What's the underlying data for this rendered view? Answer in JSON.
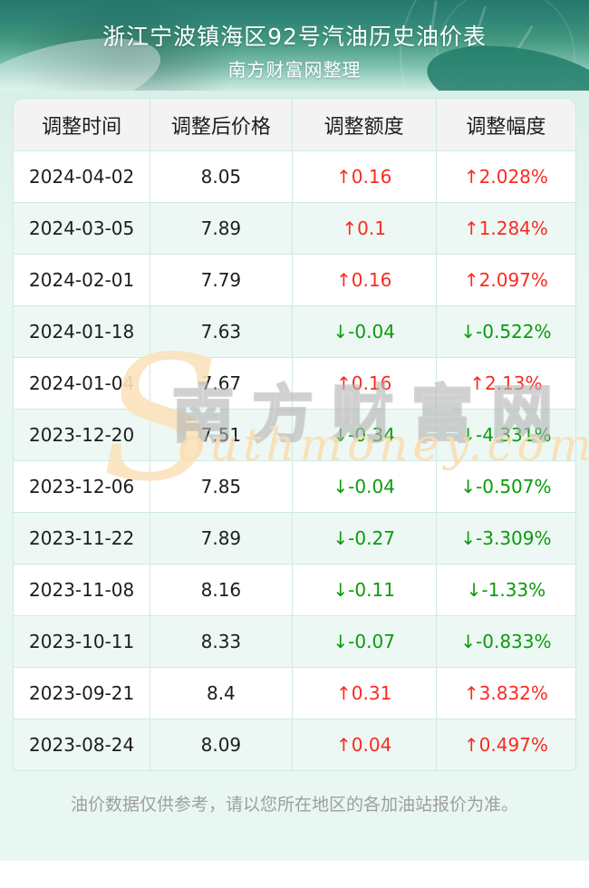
{
  "header": {
    "title": "浙江宁波镇海区92号汽油历史油价表",
    "subtitle": "南方财富网整理"
  },
  "chart_data": {
    "type": "table",
    "title": "浙江宁波镇海区92号汽油历史油价表",
    "subtitle": "南方财富网整理",
    "columns": [
      "调整时间",
      "调整后价格",
      "调整额度",
      "调整幅度"
    ],
    "rows": [
      [
        "2024-04-02",
        "8.05",
        "↑0.16",
        "↑2.028%"
      ],
      [
        "2024-03-05",
        "7.89",
        "↑0.1",
        "↑1.284%"
      ],
      [
        "2024-02-01",
        "7.79",
        "↑0.16",
        "↑2.097%"
      ],
      [
        "2024-01-18",
        "7.63",
        "↓-0.04",
        "↓-0.522%"
      ],
      [
        "2024-01-04",
        "7.67",
        "↑0.16",
        "↑2.13%"
      ],
      [
        "2023-12-20",
        "7.51",
        "↓-0.34",
        "↓-4.331%"
      ],
      [
        "2023-12-06",
        "7.85",
        "↓-0.04",
        "↓-0.507%"
      ],
      [
        "2023-11-22",
        "7.89",
        "↓-0.27",
        "↓-3.309%"
      ],
      [
        "2023-11-08",
        "8.16",
        "↓-0.11",
        "↓-1.33%"
      ],
      [
        "2023-10-11",
        "8.33",
        "↓-0.07",
        "↓-0.833%"
      ],
      [
        "2023-09-21",
        "8.4",
        "↑0.31",
        "↑3.832%"
      ],
      [
        "2023-08-24",
        "8.09",
        "↑0.04",
        "↑0.497%"
      ]
    ],
    "note": "油价数据仅供参考，请以您所在地区的各加油站报价为准。"
  },
  "watermark": {
    "swash": "S",
    "cn": "南方财富网",
    "en": "outhmoney.com"
  },
  "colors": {
    "banner_teal_dark": "#27786c",
    "banner_teal_light": "#cdeae1",
    "page_mint": "#e9f7f3",
    "table_border": "#cdeae3",
    "table_header_bg": "#f3f3f3",
    "row_alt_bg": "#edf8f5",
    "up_red": "#fa2a20",
    "down_green": "#0b9b0b",
    "watermark_tan": "#fbe3bd",
    "note_gray": "#9e9e9e"
  }
}
